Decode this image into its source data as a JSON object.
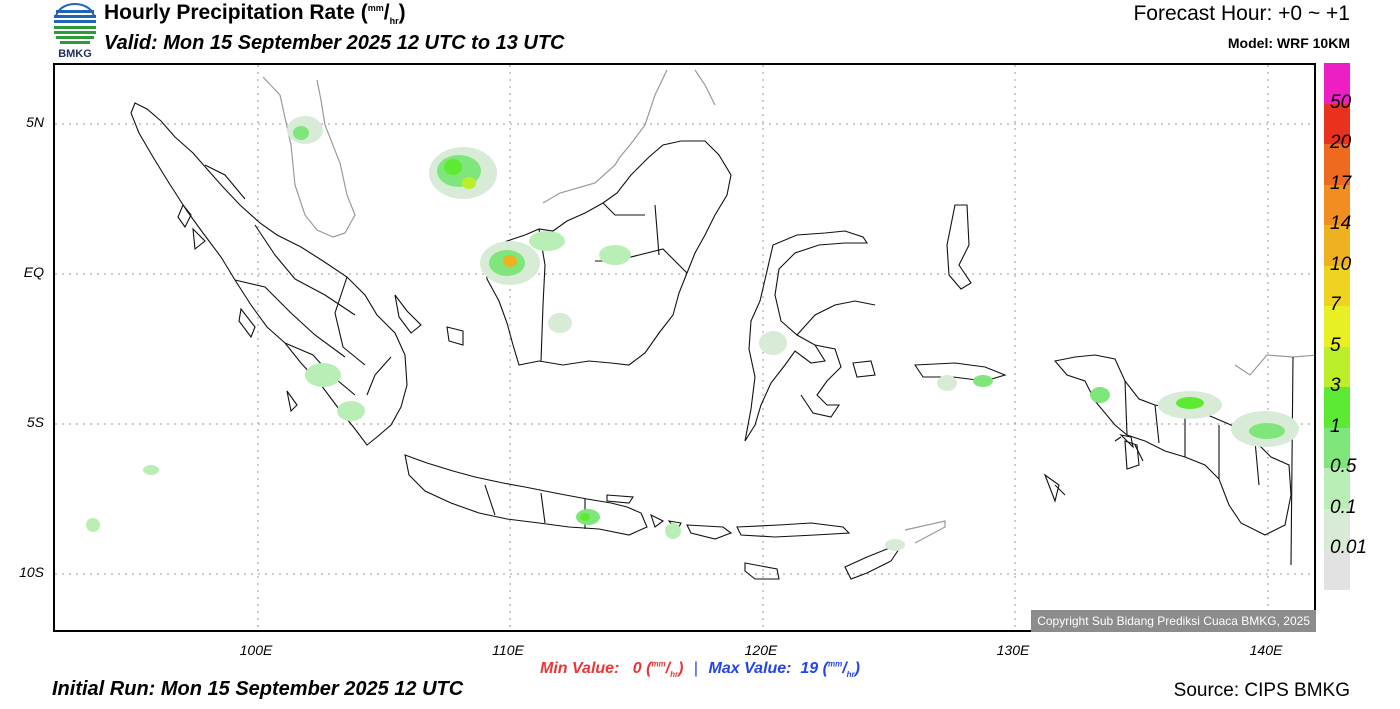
{
  "header": {
    "logo_text": "BMKG",
    "title_main": "Hourly Precipitation Rate (",
    "title_unit_num": "mm",
    "title_unit_slash": "/",
    "title_unit_den": "hr",
    "title_close": ")",
    "valid": "Valid: Mon 15 September 2025 12 UTC to 13 UTC",
    "forecast_hour": "Forecast Hour: +0 ~ +1",
    "model": "Model: WRF 10KM"
  },
  "map": {
    "lat_labels": [
      "5N",
      "EQ",
      "5S",
      "10S"
    ],
    "lon_labels": [
      "100E",
      "110E",
      "120E",
      "130E",
      "140E"
    ],
    "copyright": "Copyright Sub Bidang Prediksi Cuaca BMKG, 2025",
    "colors": {
      "land_outline": "#111111",
      "foreign_outline": "#9a9a9a",
      "gridline": "#999999"
    }
  },
  "legend": {
    "labels": [
      "50",
      "20",
      "17",
      "14",
      "10",
      "7",
      "5",
      "3",
      "1",
      "0.5",
      "0.1",
      "0.01"
    ],
    "colors": [
      "#ec1ec4",
      "#e8321e",
      "#ee6a1e",
      "#f08e22",
      "#eeb11f",
      "#eed420",
      "#e8ef22",
      "#bdee2a",
      "#5dea32",
      "#7ee67a",
      "#b9efb6",
      "#d7ebd7",
      "#e2e2e2"
    ]
  },
  "footer": {
    "min_label": "Min Value:",
    "min_value": "0",
    "max_label": "Max Value:",
    "max_value": "19",
    "unit_num": "mm",
    "unit_den": "hr",
    "separator": "|",
    "initial_run": "Initial Run: Mon 15 September 2025 12 UTC",
    "source": "Source: CIPS BMKG"
  }
}
